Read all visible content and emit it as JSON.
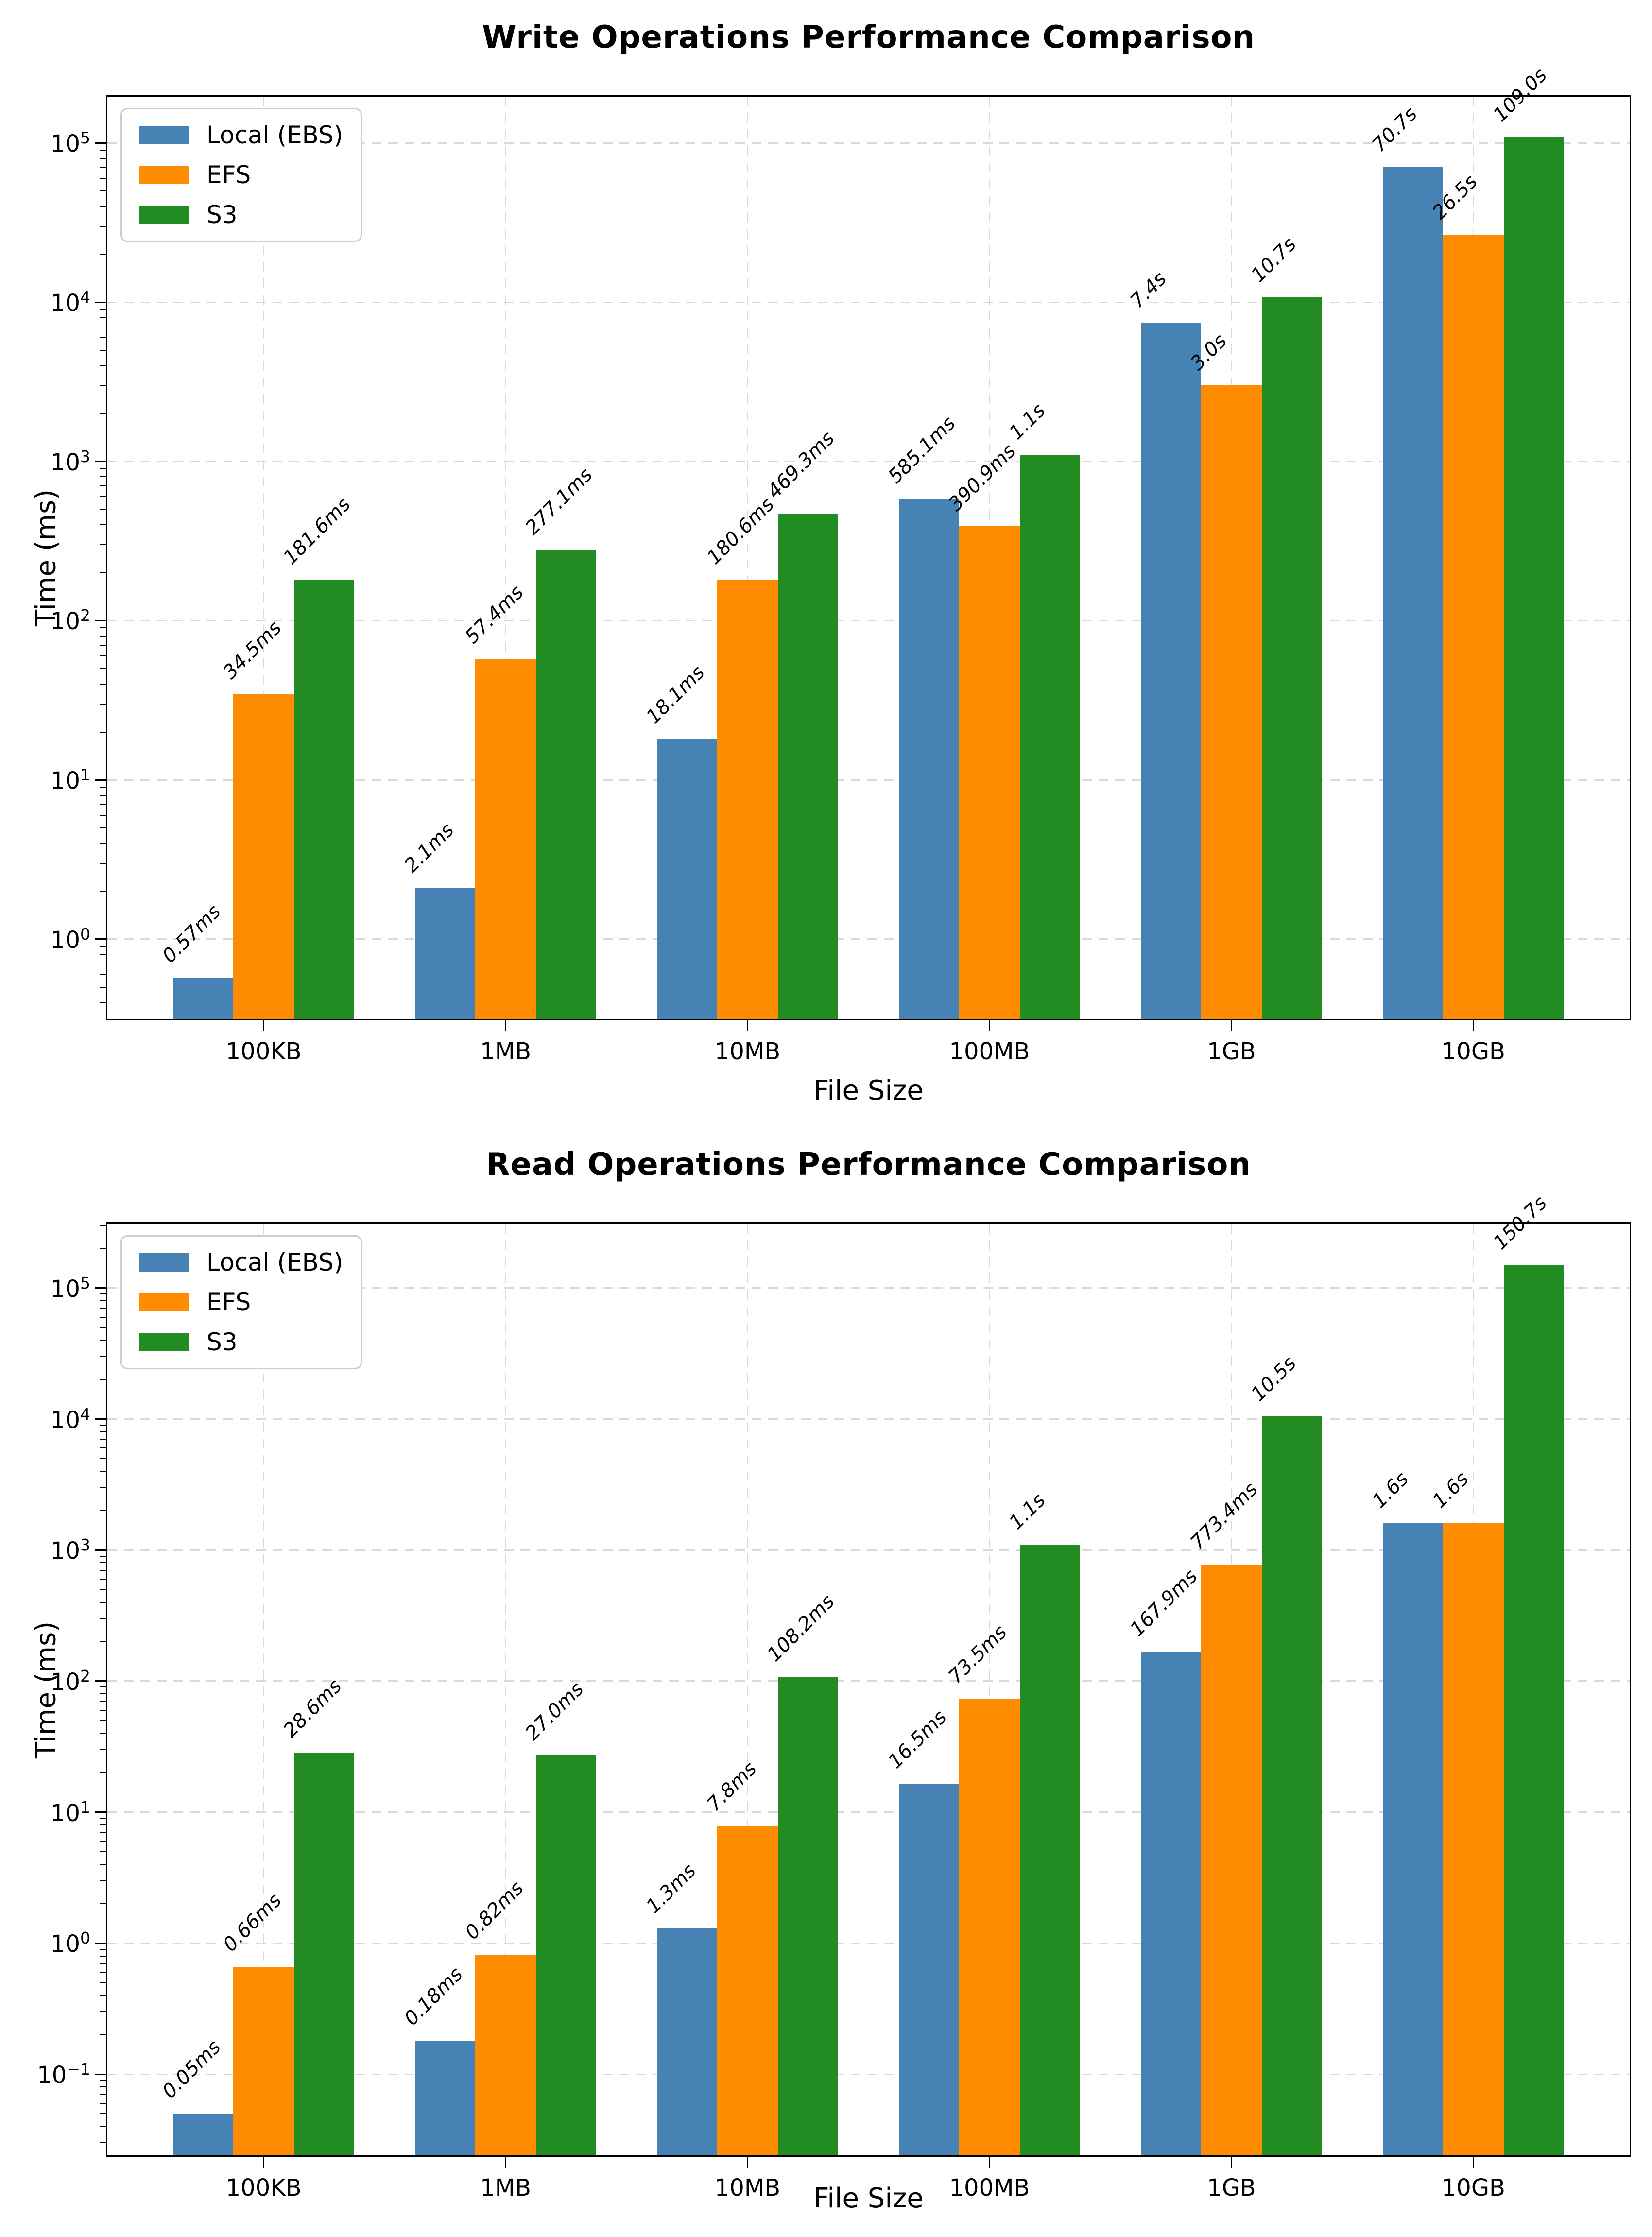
{
  "colors": {
    "local_ebs": "#4682b4",
    "efs": "#ff8c00",
    "s3": "#228b22",
    "grid": "#d9d9d9",
    "spine": "#000000",
    "legend_border": "#cccccc",
    "background": "#ffffff"
  },
  "chart_data": [
    {
      "type": "bar",
      "title": "Write Operations Performance Comparison",
      "xlabel": "File Size",
      "ylabel": "Time (ms)",
      "yscale": "log",
      "grid": true,
      "legend_position": "upper left",
      "categories": [
        "100KB",
        "1MB",
        "10MB",
        "100MB",
        "1GB",
        "10GB"
      ],
      "ytick_labels": [
        "10^0",
        "10^1",
        "10^2",
        "10^3",
        "10^4",
        "10^5"
      ],
      "ytick_exponents": [
        0,
        1,
        2,
        3,
        4,
        5
      ],
      "ylim_log10": [
        -0.51,
        5.3
      ],
      "series": [
        {
          "name": "Local (EBS)",
          "color": "#4682b4",
          "values_ms": [
            0.57,
            2.1,
            18.1,
            585.1,
            7400,
            70700
          ],
          "labels": [
            "0.57ms",
            "2.1ms",
            "18.1ms",
            "585.1ms",
            "7.4s",
            "70.7s"
          ]
        },
        {
          "name": "EFS",
          "color": "#ff8c00",
          "values_ms": [
            34.5,
            57.4,
            180.6,
            390.9,
            3000,
            26500
          ],
          "labels": [
            "34.5ms",
            "57.4ms",
            "180.6ms",
            "390.9ms",
            "3.0s",
            "26.5s"
          ]
        },
        {
          "name": "S3",
          "color": "#228b22",
          "values_ms": [
            181.6,
            277.1,
            469.3,
            1100,
            10700,
            109000
          ],
          "labels": [
            "181.6ms",
            "277.1ms",
            "469.3ms",
            "1.1s",
            "10.7s",
            "109.0s"
          ]
        }
      ]
    },
    {
      "type": "bar",
      "title": "Read Operations Performance Comparison",
      "xlabel": "File Size",
      "ylabel": "Time (ms)",
      "yscale": "log",
      "grid": true,
      "legend_position": "upper left",
      "categories": [
        "100KB",
        "1MB",
        "10MB",
        "100MB",
        "1GB",
        "10GB"
      ],
      "ytick_labels": [
        "10^-1",
        "10^0",
        "10^1",
        "10^2",
        "10^3",
        "10^4",
        "10^5"
      ],
      "ytick_exponents": [
        -1,
        0,
        1,
        2,
        3,
        4,
        5
      ],
      "ylim_log10": [
        -1.63,
        5.5
      ],
      "series": [
        {
          "name": "Local (EBS)",
          "color": "#4682b4",
          "values_ms": [
            0.05,
            0.18,
            1.3,
            16.5,
            167.9,
            1600
          ],
          "labels": [
            "0.05ms",
            "0.18ms",
            "1.3ms",
            "16.5ms",
            "167.9ms",
            "1.6s"
          ]
        },
        {
          "name": "EFS",
          "color": "#ff8c00",
          "values_ms": [
            0.66,
            0.82,
            7.8,
            73.5,
            773.4,
            1600
          ],
          "labels": [
            "0.66ms",
            "0.82ms",
            "7.8ms",
            "73.5ms",
            "773.4ms",
            "1.6s"
          ]
        },
        {
          "name": "S3",
          "color": "#228b22",
          "values_ms": [
            28.6,
            27.0,
            108.2,
            1100,
            10500,
            150700
          ],
          "labels": [
            "28.6ms",
            "27.0ms",
            "108.2ms",
            "1.1s",
            "10.5s",
            "150.7s"
          ]
        }
      ]
    }
  ]
}
